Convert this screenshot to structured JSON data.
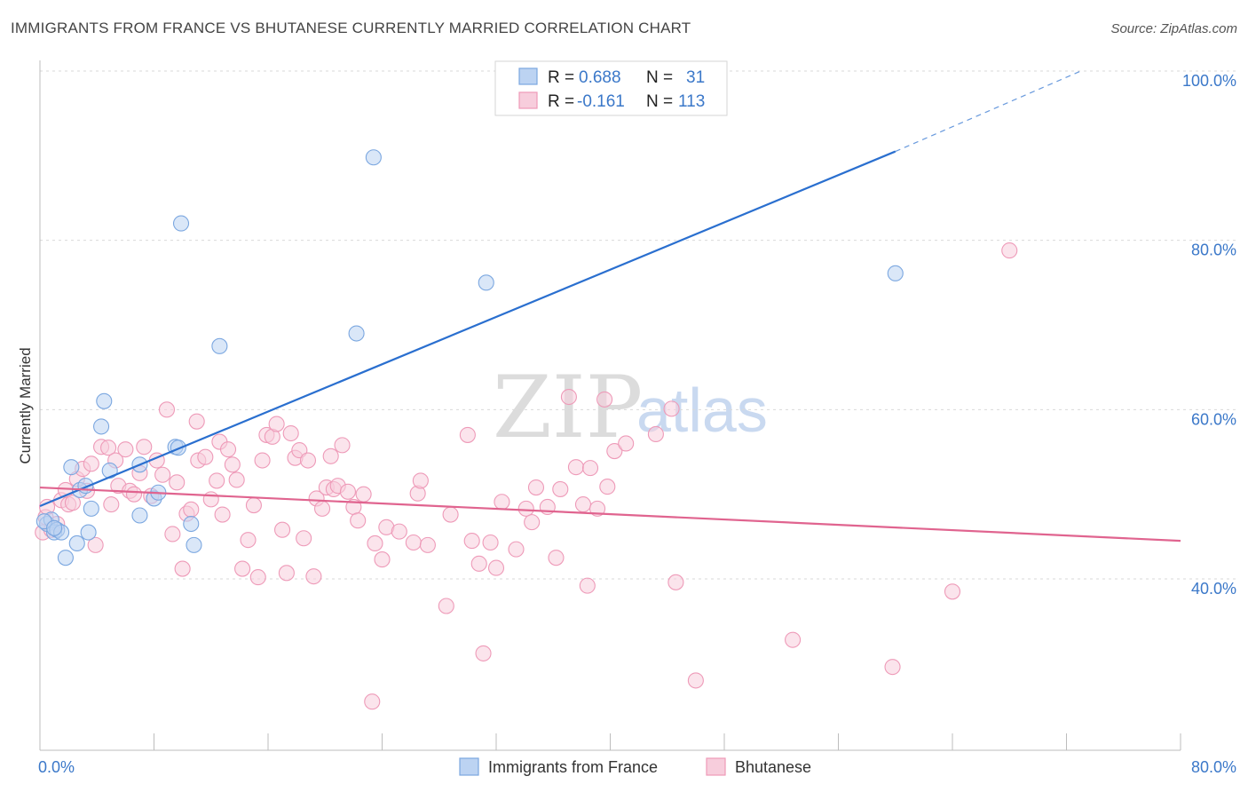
{
  "title": "IMMIGRANTS FROM FRANCE VS BHUTANESE CURRENTLY MARRIED CORRELATION CHART",
  "source": "Source: ZipAtlas.com",
  "watermark": {
    "zip": "ZIP",
    "atlas": "atlas"
  },
  "chart_data": {
    "type": "scatter",
    "ylabel": "Currently Married",
    "xlabel": "",
    "xlim": [
      0,
      80
    ],
    "ylim": [
      20,
      104
    ],
    "x_tick_labels": [
      {
        "value": 0,
        "label": "0.0%"
      },
      {
        "value": 80,
        "label": "80.0%"
      }
    ],
    "y_tick_labels": [
      {
        "value": 40,
        "label": "40.0%"
      },
      {
        "value": 60,
        "label": "60.0%"
      },
      {
        "value": 80,
        "label": "80.0%"
      },
      {
        "value": 100,
        "label": "100.0%"
      }
    ],
    "x_minor_ticks": [
      0,
      8,
      16,
      24,
      32,
      40,
      48,
      56,
      64,
      72,
      80
    ],
    "grid": true,
    "legend_position": "top-center",
    "stats": [
      {
        "r_label": "R =",
        "r": "0.688",
        "n_label": "N =",
        "n": "31"
      },
      {
        "r_label": "R =",
        "r": "-0.161",
        "n_label": "N =",
        "n": "113"
      }
    ],
    "series": [
      {
        "name": "Immigrants from France",
        "color": "#7ba7e0",
        "fill": "#bcd3f2",
        "line_color": "#2a6fcf",
        "trend": {
          "x": [
            0,
            60
          ],
          "y": [
            48.6,
            90.5
          ],
          "dashed_to": [
            73,
            100
          ]
        },
        "points": [
          [
            0.5,
            46.5
          ],
          [
            0.8,
            47.0
          ],
          [
            1.0,
            45.5
          ],
          [
            1.2,
            45.8
          ],
          [
            1.5,
            45.5
          ],
          [
            1.8,
            42.5
          ],
          [
            2.2,
            53.2
          ],
          [
            2.6,
            44.2
          ],
          [
            2.8,
            50.5
          ],
          [
            3.2,
            51.0
          ],
          [
            3.4,
            45.5
          ],
          [
            3.6,
            48.3
          ],
          [
            4.3,
            58.0
          ],
          [
            4.5,
            61.0
          ],
          [
            4.9,
            52.8
          ],
          [
            7.0,
            47.5
          ],
          [
            7.0,
            53.5
          ],
          [
            8.0,
            49.5
          ],
          [
            8.3,
            50.2
          ],
          [
            9.5,
            55.6
          ],
          [
            9.7,
            55.5
          ],
          [
            9.9,
            82.0
          ],
          [
            10.6,
            46.5
          ],
          [
            10.8,
            44.0
          ],
          [
            12.6,
            67.5
          ],
          [
            22.2,
            69.0
          ],
          [
            23.4,
            89.8
          ],
          [
            31.3,
            75.0
          ],
          [
            60.0,
            76.1
          ],
          [
            0.3,
            46.8
          ],
          [
            1.0,
            46.0
          ]
        ]
      },
      {
        "name": "Bhutanese",
        "color": "#ee9ab8",
        "fill": "#f7cddc",
        "line_color": "#e0648f",
        "trend": {
          "x": [
            0,
            80
          ],
          "y": [
            50.8,
            44.5
          ]
        },
        "points": [
          [
            0.2,
            45.5
          ],
          [
            0.4,
            47.3
          ],
          [
            0.5,
            48.5
          ],
          [
            0.8,
            45.8
          ],
          [
            1.2,
            46.5
          ],
          [
            1.5,
            49.3
          ],
          [
            1.8,
            50.5
          ],
          [
            2.0,
            48.8
          ],
          [
            2.3,
            49.0
          ],
          [
            2.6,
            51.8
          ],
          [
            3.0,
            53.0
          ],
          [
            3.3,
            50.4
          ],
          [
            3.6,
            53.6
          ],
          [
            3.9,
            44.0
          ],
          [
            4.3,
            55.6
          ],
          [
            4.8,
            55.5
          ],
          [
            5.0,
            48.8
          ],
          [
            5.3,
            54.0
          ],
          [
            5.5,
            51.0
          ],
          [
            6.0,
            55.3
          ],
          [
            6.3,
            50.4
          ],
          [
            6.6,
            50.0
          ],
          [
            7.0,
            52.5
          ],
          [
            7.3,
            55.6
          ],
          [
            7.8,
            49.8
          ],
          [
            8.2,
            54.0
          ],
          [
            8.6,
            52.3
          ],
          [
            8.9,
            60.0
          ],
          [
            9.3,
            45.3
          ],
          [
            9.6,
            51.4
          ],
          [
            10.0,
            41.2
          ],
          [
            10.3,
            47.7
          ],
          [
            10.6,
            48.2
          ],
          [
            11.0,
            58.6
          ],
          [
            11.1,
            54.0
          ],
          [
            11.6,
            54.4
          ],
          [
            12.0,
            49.4
          ],
          [
            12.4,
            51.6
          ],
          [
            12.6,
            56.2
          ],
          [
            12.8,
            47.6
          ],
          [
            13.2,
            55.3
          ],
          [
            13.5,
            53.5
          ],
          [
            13.8,
            51.7
          ],
          [
            14.2,
            41.2
          ],
          [
            14.6,
            44.6
          ],
          [
            15.0,
            48.7
          ],
          [
            15.3,
            40.2
          ],
          [
            15.6,
            54.0
          ],
          [
            15.9,
            57.0
          ],
          [
            16.3,
            56.8
          ],
          [
            16.6,
            58.3
          ],
          [
            17.0,
            45.8
          ],
          [
            17.3,
            40.7
          ],
          [
            17.6,
            57.2
          ],
          [
            17.9,
            54.3
          ],
          [
            18.2,
            55.2
          ],
          [
            18.5,
            44.8
          ],
          [
            18.8,
            54.0
          ],
          [
            19.2,
            40.3
          ],
          [
            19.4,
            49.5
          ],
          [
            19.8,
            48.3
          ],
          [
            20.1,
            50.8
          ],
          [
            20.4,
            54.5
          ],
          [
            20.6,
            50.6
          ],
          [
            20.9,
            51.0
          ],
          [
            21.2,
            55.8
          ],
          [
            21.6,
            50.3
          ],
          [
            22.0,
            48.5
          ],
          [
            22.3,
            46.9
          ],
          [
            22.7,
            50.0
          ],
          [
            23.3,
            25.5
          ],
          [
            23.5,
            44.2
          ],
          [
            24.0,
            42.3
          ],
          [
            24.3,
            46.1
          ],
          [
            25.2,
            45.6
          ],
          [
            26.2,
            44.3
          ],
          [
            26.5,
            50.1
          ],
          [
            26.7,
            51.6
          ],
          [
            27.2,
            44.0
          ],
          [
            28.5,
            36.8
          ],
          [
            28.8,
            47.6
          ],
          [
            30.0,
            57.0
          ],
          [
            30.3,
            44.5
          ],
          [
            30.8,
            41.8
          ],
          [
            31.1,
            31.2
          ],
          [
            31.6,
            44.3
          ],
          [
            32.0,
            41.3
          ],
          [
            32.4,
            49.1
          ],
          [
            33.4,
            43.5
          ],
          [
            34.1,
            48.3
          ],
          [
            34.5,
            46.7
          ],
          [
            34.8,
            50.8
          ],
          [
            35.6,
            48.5
          ],
          [
            36.2,
            42.5
          ],
          [
            36.5,
            50.6
          ],
          [
            37.1,
            61.5
          ],
          [
            37.6,
            53.2
          ],
          [
            38.1,
            48.8
          ],
          [
            38.4,
            39.2
          ],
          [
            38.6,
            53.1
          ],
          [
            39.1,
            48.3
          ],
          [
            39.6,
            61.2
          ],
          [
            39.8,
            50.9
          ],
          [
            40.3,
            55.1
          ],
          [
            41.1,
            56.0
          ],
          [
            43.2,
            57.1
          ],
          [
            44.3,
            60.1
          ],
          [
            44.6,
            39.6
          ],
          [
            46.0,
            28.0
          ],
          [
            52.8,
            32.8
          ],
          [
            59.8,
            29.6
          ],
          [
            64.0,
            38.5
          ],
          [
            68.0,
            78.8
          ]
        ]
      }
    ]
  },
  "bottom_legend": [
    {
      "label": "Immigrants from France",
      "fill": "#bcd3f2",
      "stroke": "#7ba7e0"
    },
    {
      "label": "Bhutanese",
      "fill": "#f7cddc",
      "stroke": "#ee9ab8"
    }
  ]
}
